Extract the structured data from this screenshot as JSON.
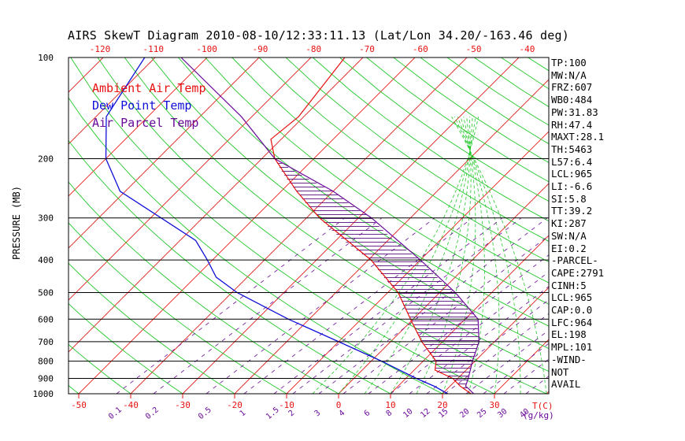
{
  "title": "AIRS SkewT Diagram 2010-08-10/12:33:11.13 (Lat/Lon 34.20/-163.46 deg)",
  "legend": [
    {
      "label": "Ambient Air Temp",
      "color": "#e81010"
    },
    {
      "label": "Dew Point Temp",
      "color": "#1010d8"
    },
    {
      "label": "Air Parcel Temp",
      "color": "#6a0a9a"
    }
  ],
  "y_axis_label": "PRESSURE (MB)",
  "x_axis_unit_label": "T(C)",
  "mixing_ratio_unit_label": "(g/kg)",
  "indices": [
    "TP:100",
    "MW:N/A",
    "FRZ:607",
    "WB0:484",
    "PW:31.83",
    "RH:47.4",
    "MAXT:28.1",
    "TH:5463",
    "L57:6.4",
    "LCL:965",
    "LI:-6.6",
    "SI:5.8",
    "TT:39.2",
    "KI:287",
    "SW:N/A",
    "EI:0.2",
    "-PARCEL-",
    "CAPE:2791",
    "CINH:5",
    "LCL:965",
    "CAP:0.0",
    "LFC:964",
    "EL:198",
    "MPL:101",
    "-WIND-",
    "NOT",
    "AVAIL"
  ],
  "chart_data": {
    "type": "line",
    "title": "AIRS SkewT Diagram 2010-08-10/12:33:11.13 (Lat/Lon 34.20/-163.46 deg)",
    "ylabel": "PRESSURE (MB)",
    "xlabel": "T(C)",
    "pressure_levels": [
      100,
      200,
      300,
      400,
      500,
      600,
      700,
      800,
      900,
      1000
    ],
    "pressure_tick_labels": [
      "100",
      "200",
      "300",
      "400",
      "500",
      "600",
      "700",
      "800",
      "900",
      "1000"
    ],
    "bottom_temperature_ticks": [
      -50,
      -40,
      -30,
      -20,
      -10,
      0,
      10,
      20,
      30
    ],
    "top_temperature_ticks": [
      -120,
      -110,
      -100,
      -90,
      -80,
      -70,
      -60,
      -50,
      -40
    ],
    "mixing_ratio_labels": [
      "0.1",
      "0.2",
      "0.5",
      "1",
      "1.5",
      "2",
      "3",
      "4",
      "6",
      "8",
      "10",
      "12",
      "15",
      "20",
      "25",
      "30",
      "40"
    ],
    "series": [
      {
        "name": "Ambient Air Temp",
        "points": [
          [
            100,
            -63.5
          ],
          [
            150,
            -61
          ],
          [
            175,
            -62
          ],
          [
            200,
            -57.5
          ],
          [
            250,
            -47
          ],
          [
            300,
            -37.5
          ],
          [
            400,
            -19.5
          ],
          [
            500,
            -8
          ],
          [
            600,
            -0.5
          ],
          [
            700,
            6
          ],
          [
            800,
            12.5
          ],
          [
            850,
            14
          ],
          [
            900,
            19
          ],
          [
            950,
            22
          ],
          [
            1000,
            25.5
          ]
        ]
      },
      {
        "name": "Dew Point Temp",
        "points": [
          [
            100,
            -102
          ],
          [
            150,
            -98
          ],
          [
            200,
            -90
          ],
          [
            250,
            -81
          ],
          [
            300,
            -68
          ],
          [
            350,
            -57
          ],
          [
            400,
            -51
          ],
          [
            450,
            -46
          ],
          [
            500,
            -39
          ],
          [
            600,
            -24
          ],
          [
            700,
            -10
          ],
          [
            800,
            2
          ],
          [
            900,
            12
          ],
          [
            950,
            17
          ],
          [
            1000,
            21
          ]
        ]
      },
      {
        "name": "Air Parcel Temp",
        "points": [
          [
            100,
            -95
          ],
          [
            150,
            -72
          ],
          [
            200,
            -57.5
          ],
          [
            250,
            -40
          ],
          [
            300,
            -27.5
          ],
          [
            400,
            -10
          ],
          [
            500,
            3
          ],
          [
            600,
            12.5
          ],
          [
            700,
            17
          ],
          [
            800,
            19.5
          ],
          [
            900,
            22
          ],
          [
            950,
            23
          ],
          [
            965,
            24
          ],
          [
            1000,
            26
          ]
        ]
      }
    ]
  }
}
